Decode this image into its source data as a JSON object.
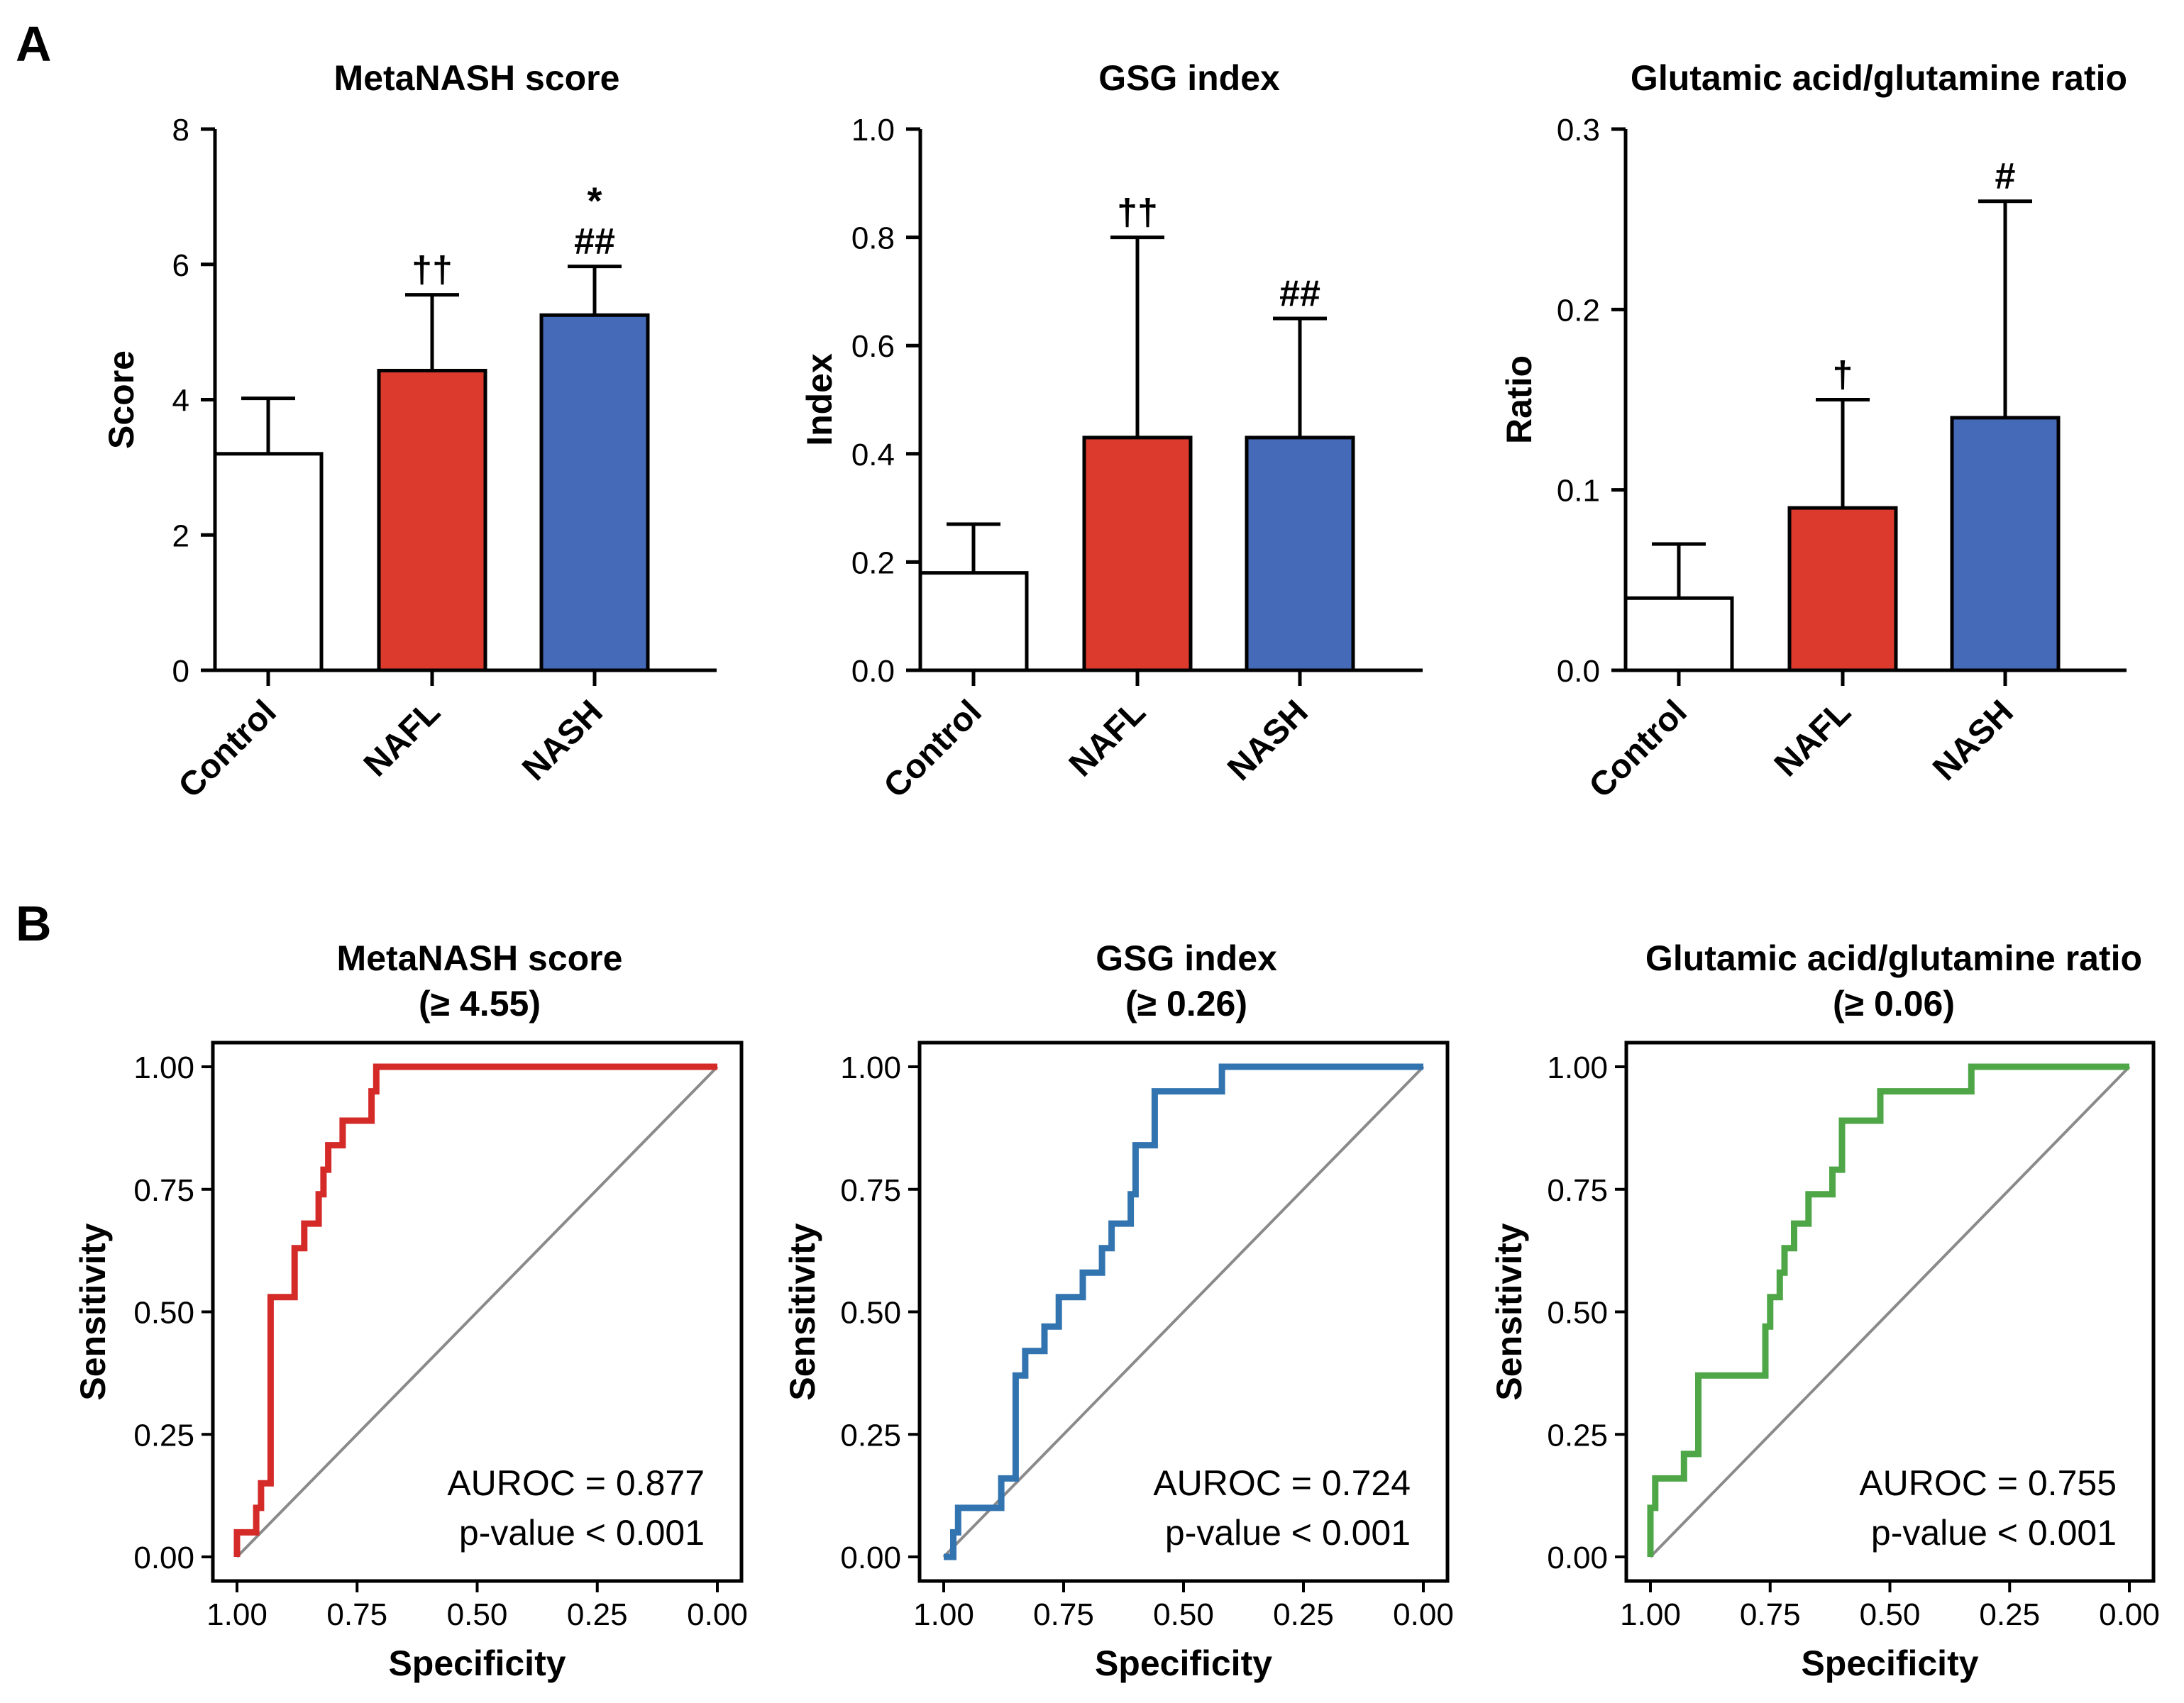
{
  "colors": {
    "control": "#ffffff",
    "nafl": "#dc3a2c",
    "nash": "#456ab7",
    "roc_metanash": "#d42a28",
    "roc_gsg": "#3274b0",
    "roc_ratio": "#4ea647",
    "diagonal": "#8a8a8a"
  },
  "panels": {
    "A": {
      "label": "A"
    },
    "B": {
      "label": "B"
    }
  },
  "chart_data": [
    {
      "type": "bar",
      "panel": "A",
      "title": "MetaNASH score",
      "ylabel": "Score",
      "ylim": [
        0,
        8
      ],
      "yticks": [
        "0",
        "2",
        "4",
        "6",
        "8"
      ],
      "categories": [
        "Control",
        "NAFL",
        "NASH"
      ],
      "values": [
        3.2,
        4.43,
        5.25
      ],
      "errors": [
        0.82,
        1.12,
        0.72
      ],
      "annotations": [
        [],
        [
          "††"
        ],
        [
          "##",
          "*"
        ]
      ]
    },
    {
      "type": "bar",
      "panel": "A",
      "title": "GSG index",
      "ylabel": "Index",
      "ylim": [
        0,
        1.0
      ],
      "yticks": [
        "0.0",
        "0.2",
        "0.4",
        "0.6",
        "0.8",
        "1.0"
      ],
      "categories": [
        "Control",
        "NAFL",
        "NASH"
      ],
      "values": [
        0.18,
        0.43,
        0.43
      ],
      "errors": [
        0.09,
        0.37,
        0.22
      ],
      "annotations": [
        [],
        [
          "††"
        ],
        [
          "##"
        ]
      ]
    },
    {
      "type": "bar",
      "panel": "A",
      "title": "Glutamic acid/glutamine ratio",
      "ylabel": "Ratio",
      "ylim": [
        0,
        0.3
      ],
      "yticks": [
        "0.0",
        "0.1",
        "0.2",
        "0.3"
      ],
      "categories": [
        "Control",
        "NAFL",
        "NASH"
      ],
      "values": [
        0.04,
        0.09,
        0.14
      ],
      "errors": [
        0.03,
        0.06,
        0.12
      ],
      "annotations": [
        [],
        [
          "†"
        ],
        [
          "#"
        ]
      ]
    },
    {
      "type": "line",
      "panel": "B",
      "title": "MetaNASH score",
      "subtitle": "(≥ 4.55)",
      "xlabel": "Specificity",
      "ylabel": "Sensitivity",
      "xlim": [
        1,
        0
      ],
      "ylim": [
        0,
        1
      ],
      "xticks": [
        "1.00",
        "0.75",
        "0.50",
        "0.25",
        "0.00"
      ],
      "yticks": [
        "0.00",
        "0.25",
        "0.50",
        "0.75",
        "1.00"
      ],
      "auroc_text": "AUROC =  0.877",
      "pvalue_text": "p-value < 0.001",
      "color_key": "roc_metanash",
      "x": [
        1.0,
        1.0,
        0.96,
        0.96,
        0.95,
        0.95,
        0.93,
        0.93,
        0.93,
        0.93,
        0.88,
        0.88,
        0.86,
        0.86,
        0.83,
        0.83,
        0.82,
        0.82,
        0.81,
        0.81,
        0.78,
        0.78,
        0.72,
        0.72,
        0.71,
        0.71,
        0.0
      ],
      "y": [
        0.0,
        0.05,
        0.05,
        0.1,
        0.1,
        0.15,
        0.15,
        0.34,
        0.38,
        0.53,
        0.53,
        0.63,
        0.63,
        0.68,
        0.68,
        0.74,
        0.74,
        0.79,
        0.79,
        0.84,
        0.84,
        0.89,
        0.89,
        0.95,
        0.95,
        1.0,
        1.0
      ]
    },
    {
      "type": "line",
      "panel": "B",
      "title": "GSG index",
      "subtitle": "(≥ 0.26)",
      "xlabel": "Specificity",
      "ylabel": "Sensitivity",
      "xlim": [
        1,
        0
      ],
      "ylim": [
        0,
        1
      ],
      "xticks": [
        "1.00",
        "0.75",
        "0.50",
        "0.25",
        "0.00"
      ],
      "yticks": [
        "0.00",
        "0.25",
        "0.50",
        "0.75",
        "1.00"
      ],
      "auroc_text": "AUROC =  0.724",
      "pvalue_text": "p-value < 0.001",
      "color_key": "roc_gsg",
      "x": [
        1.0,
        0.98,
        0.98,
        0.97,
        0.97,
        0.95,
        0.95,
        0.88,
        0.88,
        0.85,
        0.85,
        0.83,
        0.83,
        0.82,
        0.82,
        0.79,
        0.79,
        0.76,
        0.76,
        0.71,
        0.71,
        0.67,
        0.67,
        0.65,
        0.65,
        0.61,
        0.61,
        0.6,
        0.6,
        0.56,
        0.56,
        0.42,
        0.42,
        0.0
      ],
      "y": [
        0.0,
        0.0,
        0.05,
        0.05,
        0.1,
        0.1,
        0.1,
        0.1,
        0.16,
        0.16,
        0.37,
        0.37,
        0.42,
        0.42,
        0.42,
        0.42,
        0.47,
        0.47,
        0.53,
        0.53,
        0.58,
        0.58,
        0.63,
        0.63,
        0.68,
        0.68,
        0.74,
        0.74,
        0.84,
        0.84,
        0.95,
        0.95,
        1.0,
        1.0
      ]
    },
    {
      "type": "line",
      "panel": "B",
      "title": "Glutamic acid/glutamine ratio",
      "subtitle": "(≥ 0.06)",
      "xlabel": "Specificity",
      "ylabel": "Sensitivity",
      "xlim": [
        1,
        0
      ],
      "ylim": [
        0,
        1
      ],
      "xticks": [
        "1.00",
        "0.75",
        "0.50",
        "0.25",
        "0.00"
      ],
      "yticks": [
        "0.00",
        "0.25",
        "0.50",
        "0.75",
        "1.00"
      ],
      "auroc_text": "AUROC =  0.755",
      "pvalue_text": "p-value < 0.001",
      "color_key": "roc_ratio",
      "x": [
        1.0,
        1.0,
        0.99,
        0.99,
        0.98,
        0.98,
        0.93,
        0.93,
        0.9,
        0.9,
        0.76,
        0.76,
        0.75,
        0.75,
        0.73,
        0.73,
        0.72,
        0.72,
        0.7,
        0.7,
        0.67,
        0.67,
        0.62,
        0.62,
        0.6,
        0.6,
        0.52,
        0.52,
        0.33,
        0.33,
        0.0
      ],
      "y": [
        0.0,
        0.1,
        0.1,
        0.16,
        0.16,
        0.16,
        0.16,
        0.21,
        0.21,
        0.37,
        0.37,
        0.47,
        0.47,
        0.53,
        0.53,
        0.58,
        0.58,
        0.63,
        0.63,
        0.68,
        0.68,
        0.74,
        0.74,
        0.79,
        0.79,
        0.89,
        0.89,
        0.95,
        0.95,
        1.0,
        1.0
      ]
    }
  ]
}
